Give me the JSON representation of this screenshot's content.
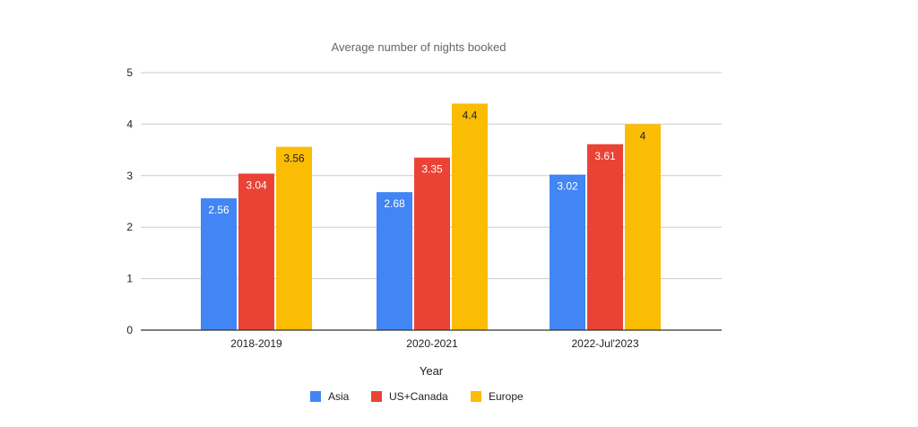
{
  "chart_data": {
    "type": "bar",
    "title": "Average number of nights booked",
    "xlabel": "Year",
    "ylabel": "",
    "categories": [
      "2018-2019",
      "2020-2021",
      "2022-Jul'2023"
    ],
    "series": [
      {
        "name": "Asia",
        "values": [
          2.56,
          2.68,
          3.02
        ],
        "color": "#4285f4",
        "label_color": "#ffffff"
      },
      {
        "name": "US+Canada",
        "values": [
          3.04,
          3.35,
          3.61
        ],
        "color": "#ea4335",
        "label_color": "#ffffff"
      },
      {
        "name": "Europe",
        "values": [
          3.56,
          4.4,
          4
        ],
        "color": "#fbbc04",
        "label_color": "#222222"
      }
    ],
    "data_labels": [
      [
        "2.56",
        "2.68",
        "3.02"
      ],
      [
        "3.04",
        "3.35",
        "3.61"
      ],
      [
        "3.56",
        "4.4",
        "4"
      ]
    ],
    "ylim": [
      0,
      5
    ],
    "yticks": [
      "0",
      "1",
      "2",
      "3",
      "4",
      "5"
    ],
    "grid": true,
    "legend": "bottom"
  }
}
